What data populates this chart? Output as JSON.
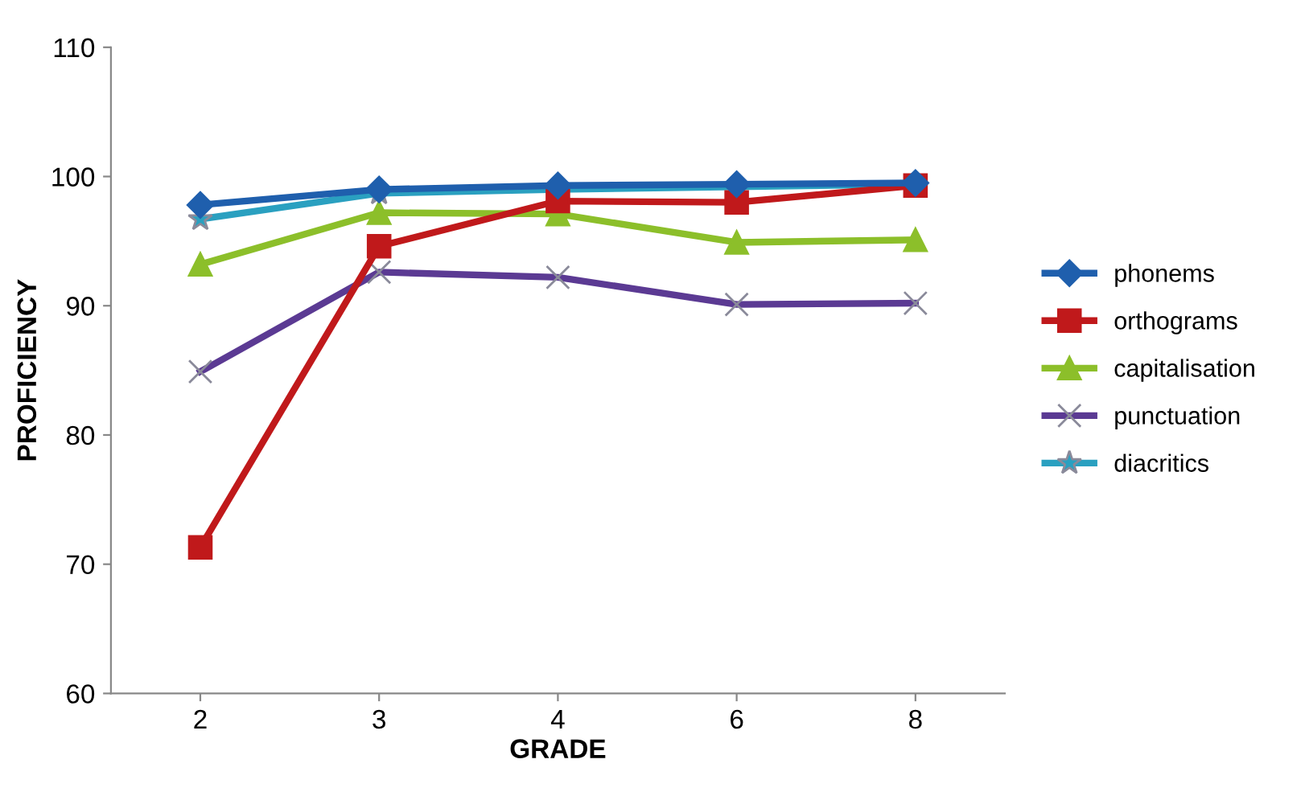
{
  "chart_data": {
    "type": "line",
    "xlabel": "GRADE",
    "ylabel": "PROFICIENCY",
    "categories": [
      "2",
      "3",
      "4",
      "6",
      "8"
    ],
    "ylim": [
      60,
      110
    ],
    "yticks": [
      60,
      70,
      80,
      90,
      100,
      110
    ],
    "grid": false,
    "legend": "right",
    "series": [
      {
        "name": "phonems",
        "color": "#1f5fad",
        "marker": "diamond",
        "values": [
          97.8,
          99.0,
          99.3,
          99.4,
          99.5
        ]
      },
      {
        "name": "orthograms",
        "color": "#c0191b",
        "marker": "square",
        "values": [
          71.3,
          94.6,
          98.1,
          98.0,
          99.3
        ]
      },
      {
        "name": "capitalisation",
        "color": "#8cbf2a",
        "marker": "triangle",
        "values": [
          93.2,
          97.2,
          97.1,
          94.9,
          95.1
        ]
      },
      {
        "name": "punctuation",
        "color": "#5b3a93",
        "marker": "cross",
        "values": [
          84.9,
          92.6,
          92.2,
          90.1,
          90.2
        ]
      },
      {
        "name": "diacritics",
        "color": "#2aa0c0",
        "marker": "star",
        "values": [
          96.7,
          98.7,
          99.0,
          99.2,
          99.4
        ]
      }
    ]
  }
}
